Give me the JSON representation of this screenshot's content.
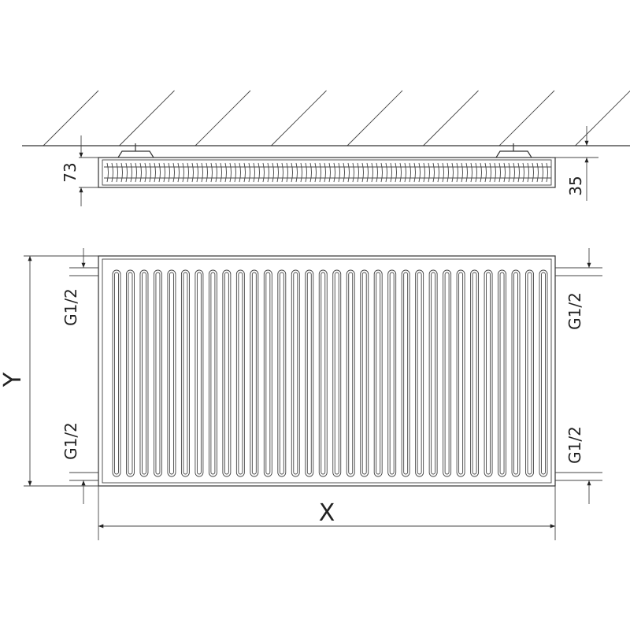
{
  "labels": {
    "side_depth": "73",
    "wall_gap": "35",
    "height": "Y",
    "width": "X",
    "conn_left_top": "G1/2",
    "conn_left_bottom": "G1/2",
    "conn_right_top": "G1/2",
    "conn_right_bottom": "G1/2"
  },
  "panel": {
    "channel_count": 32
  },
  "colors": {
    "line": "#333333",
    "background": "#ffffff"
  }
}
